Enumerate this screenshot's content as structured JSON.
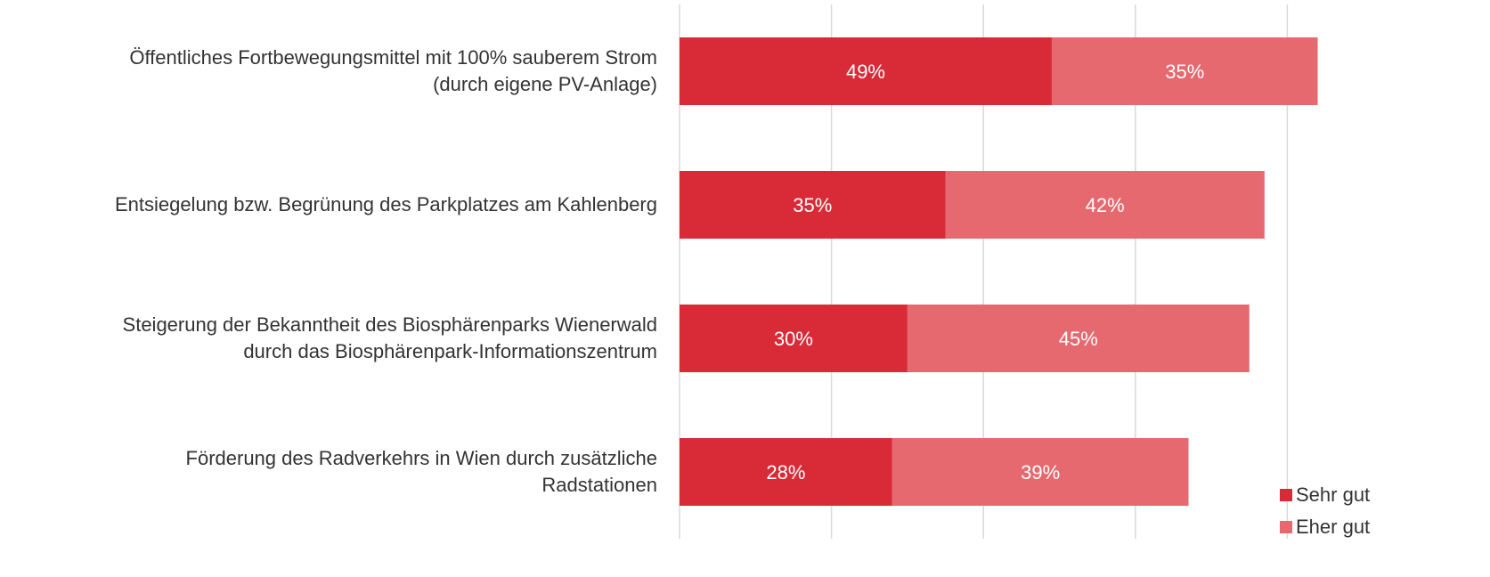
{
  "chart_data": {
    "type": "stacked-bar-horizontal",
    "categories": [
      "Öffentliches Fortbewegungsmittel mit 100% sauberem Strom\n(durch eigene PV-Anlage)",
      "Entsiegelung bzw. Begrünung des Parkplatzes am Kahlenberg",
      "Steigerung der Bekanntheit des Biosphärenparks Wienerwald\ndurch das Biosphärenpark-Informationszentrum",
      "Förderung des Radverkehrs in Wien durch zusätzliche\nRadstationen"
    ],
    "series": [
      {
        "name": "Sehr gut",
        "color": "#d92b37",
        "values": [
          49,
          35,
          30,
          28
        ],
        "value_labels": [
          "49%",
          "35%",
          "30%",
          "28%"
        ]
      },
      {
        "name": "Eher gut",
        "color": "#e5696f",
        "values": [
          35,
          42,
          45,
          39
        ],
        "value_labels": [
          "35%",
          "42%",
          "45%",
          "39%"
        ]
      }
    ],
    "xlim": [
      0,
      100
    ],
    "xticks": [
      0,
      20,
      40,
      60,
      80
    ],
    "grid": true,
    "legend": "bottom-right"
  }
}
